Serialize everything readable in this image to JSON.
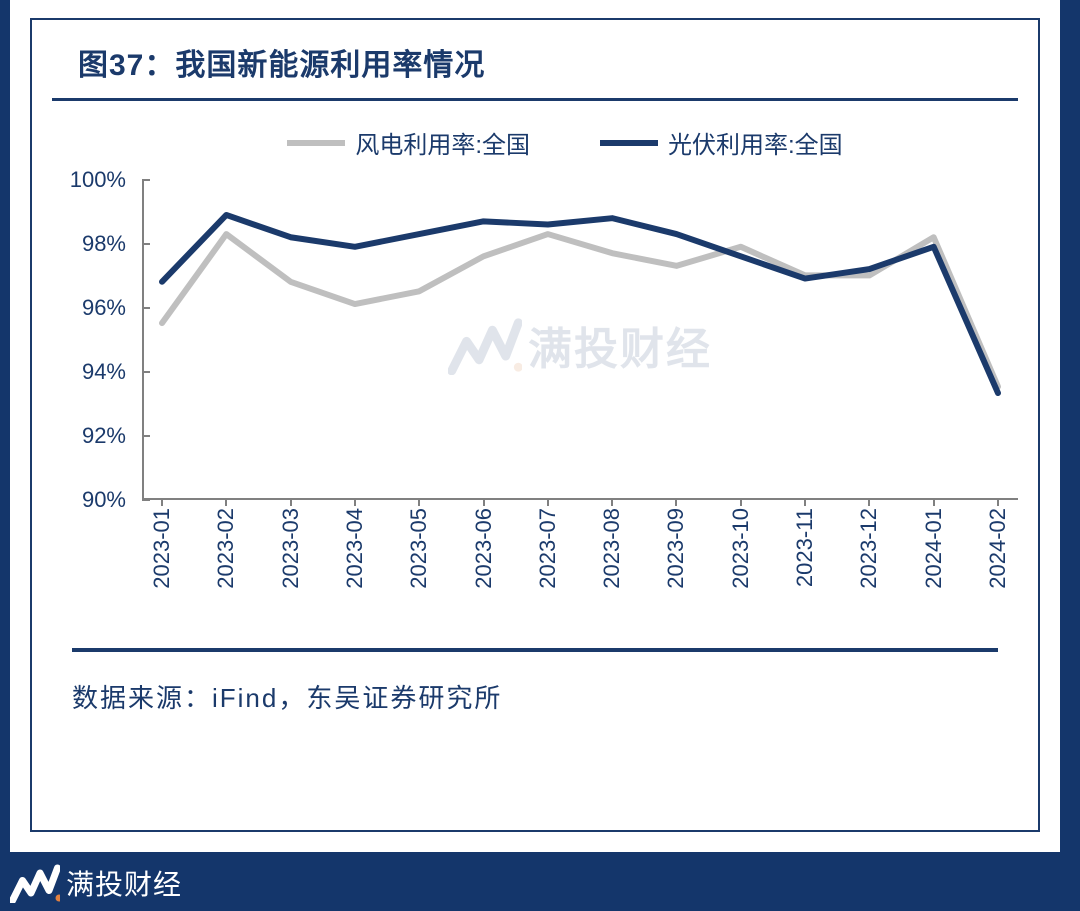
{
  "title": "图37：我国新能源利用率情况",
  "legend": {
    "series1_label": "风电利用率:全国",
    "series2_label": "光伏利用率:全国"
  },
  "chart": {
    "type": "line",
    "background_color": "#ffffff",
    "axis_color": "#808080",
    "text_color": "#1b3a6b",
    "label_fontsize": 22,
    "title_fontsize": 30,
    "ylim": [
      90,
      100
    ],
    "ytick_step": 2,
    "y_ticks": [
      "90%",
      "92%",
      "94%",
      "96%",
      "98%",
      "100%"
    ],
    "x_categories": [
      "2023-01",
      "2023-02",
      "2023-03",
      "2023-04",
      "2023-05",
      "2023-06",
      "2023-07",
      "2023-08",
      "2023-09",
      "2023-10",
      "2023-11",
      "2023-12",
      "2024-01",
      "2024-02"
    ],
    "series": [
      {
        "name": "风电利用率:全国",
        "color": "#bfbfbf",
        "line_width": 6,
        "values": [
          95.5,
          98.3,
          96.8,
          96.1,
          96.5,
          97.6,
          98.3,
          97.7,
          97.3,
          97.9,
          97.0,
          97.0,
          98.2,
          93.5
        ]
      },
      {
        "name": "光伏利用率:全国",
        "color": "#1b3a6b",
        "line_width": 6,
        "values": [
          96.8,
          98.9,
          98.2,
          97.9,
          98.3,
          98.7,
          98.6,
          98.8,
          98.3,
          97.6,
          96.9,
          97.2,
          97.9,
          93.3
        ]
      }
    ]
  },
  "source": "数据来源：iFind，东吴证券研究所",
  "watermark_text": "满投财经",
  "footer_brand": "满投财经",
  "frame_border_color": "#1b3a6b",
  "page_background": "#14366b"
}
